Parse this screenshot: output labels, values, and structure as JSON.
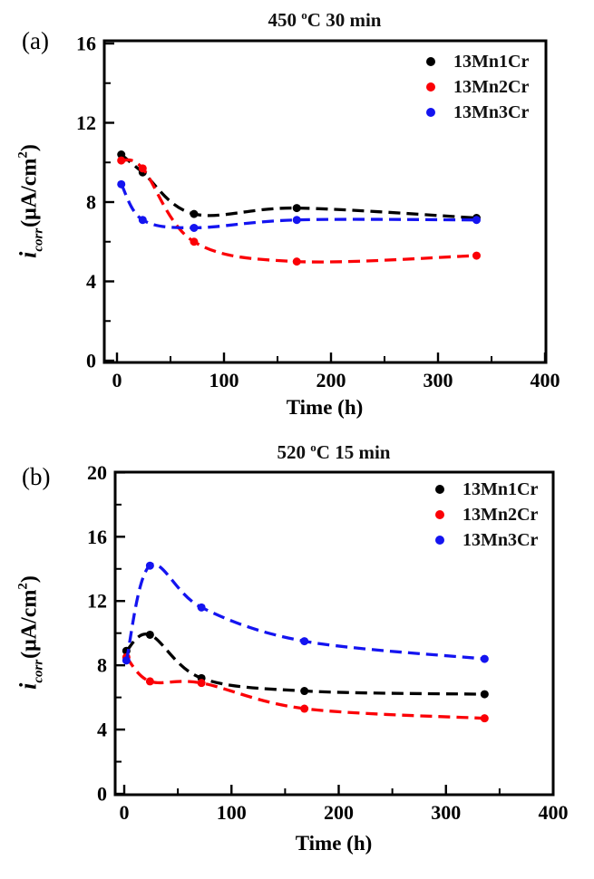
{
  "figure": {
    "panels": [
      {
        "panel_label": "(a)",
        "title": {
          "prefix": "450 ",
          "sup": "o",
          "suffix": "C 30 min"
        },
        "xlabel": "Time (h)",
        "ylabel": {
          "symbol": "i",
          "subscript": "corr",
          "unit_prefix": "(μA/cm",
          "unit_sup": "2",
          "unit_suffix": ")"
        }
      },
      {
        "panel_label": "(b)",
        "title": {
          "prefix": "520 ",
          "sup": "o",
          "suffix": "C 15 min"
        },
        "xlabel": "Time (h)",
        "ylabel": {
          "symbol": "i",
          "subscript": "corr",
          "unit_prefix": "(μA/cm",
          "unit_sup": "2",
          "unit_suffix": ")"
        }
      }
    ]
  },
  "chart_data": [
    {
      "type": "scatter",
      "title": "450 °C 30 min",
      "xlabel": "Time (h)",
      "ylabel": "i_corr (μA/cm²)",
      "x": [
        4,
        24,
        72,
        168,
        336
      ],
      "series": [
        {
          "name": "13Mn1Cr",
          "color": "#000000",
          "values": [
            10.4,
            9.5,
            7.4,
            7.7,
            7.2
          ]
        },
        {
          "name": "13Mn2Cr",
          "color": "#fb0006",
          "values": [
            10.1,
            9.7,
            6.0,
            5.0,
            5.3
          ]
        },
        {
          "name": "13Mn3Cr",
          "color": "#1414f0",
          "values": [
            8.9,
            7.1,
            6.7,
            7.1,
            7.1
          ]
        }
      ],
      "xlim": [
        0,
        400
      ],
      "ylim": [
        0,
        16
      ],
      "x_major_ticks": [
        0,
        100,
        200,
        300,
        400
      ],
      "x_minor_ticks": [
        50,
        150,
        250,
        350
      ],
      "y_major_ticks": [
        0,
        4,
        8,
        12,
        16
      ],
      "y_minor_ticks": [
        2,
        6,
        10,
        14
      ],
      "line_style": "dashed",
      "grid": false,
      "legend_position": "top-right-inside"
    },
    {
      "type": "scatter",
      "title": "520 °C 15 min",
      "xlabel": "Time (h)",
      "ylabel": "i_corr (μA/cm²)",
      "x": [
        2,
        24,
        72,
        168,
        336
      ],
      "series": [
        {
          "name": "13Mn1Cr",
          "color": "#000000",
          "values": [
            8.9,
            9.9,
            7.2,
            6.4,
            6.2
          ]
        },
        {
          "name": "13Mn2Cr",
          "color": "#fb0006",
          "values": [
            8.5,
            7.0,
            6.9,
            5.3,
            4.7
          ]
        },
        {
          "name": "13Mn3Cr",
          "color": "#1414f0",
          "values": [
            8.3,
            14.2,
            11.6,
            9.5,
            8.4
          ]
        }
      ],
      "xlim": [
        0,
        400
      ],
      "ylim": [
        0,
        20
      ],
      "x_major_ticks": [
        0,
        100,
        200,
        300,
        400
      ],
      "x_minor_ticks": [
        50,
        150,
        250,
        350
      ],
      "y_major_ticks": [
        0,
        4,
        8,
        12,
        16,
        20
      ],
      "y_minor_ticks": [
        2,
        6,
        10,
        14,
        18
      ],
      "line_style": "dashed",
      "grid": false,
      "legend_position": "top-right-inside"
    }
  ]
}
